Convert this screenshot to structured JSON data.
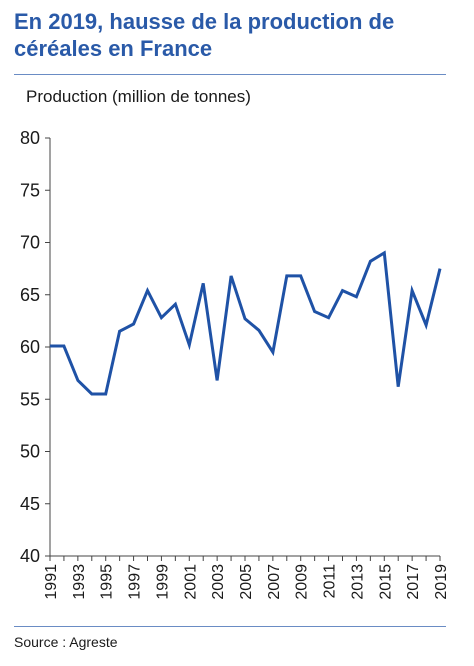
{
  "header": {
    "title_line1": "En 2019, hausse de la production de",
    "title_line2": "céréales en France"
  },
  "footer": {
    "source": "Source : Agreste"
  },
  "colors": {
    "title": "#2a5aa8",
    "line": "#1f52a6",
    "rule": "#6a8cc4",
    "axis": "#444444"
  },
  "chart_data": {
    "type": "line",
    "title": "En 2019, hausse de la production de céréales en France",
    "ylabel": "Production (million de tonnes)",
    "xlabel": "",
    "ylim": [
      40,
      80
    ],
    "yticks": [
      40,
      45,
      50,
      55,
      60,
      65,
      70,
      75,
      80
    ],
    "xlim": [
      1991,
      2019
    ],
    "xtick_labels": [
      "1991",
      "1993",
      "1995",
      "1997",
      "1999",
      "2001",
      "2003",
      "2005",
      "2007",
      "2009",
      "2011",
      "2013",
      "2015",
      "2017",
      "2019"
    ],
    "grid": false,
    "series": [
      {
        "x": [
          1991,
          1992,
          1993,
          1994,
          1995,
          1996,
          1997,
          1998,
          1999,
          2000,
          2001,
          2002,
          2003,
          2004,
          2005,
          2006,
          2007,
          2008,
          2009,
          2010,
          2011,
          2012,
          2013,
          2014,
          2015,
          2016,
          2017,
          2018,
          2019
        ],
        "values": [
          60.1,
          60.1,
          56.8,
          55.5,
          55.5,
          61.5,
          62.2,
          65.4,
          62.8,
          64.1,
          60.2,
          66.1,
          56.8,
          66.8,
          62.7,
          61.6,
          59.5,
          66.8,
          66.8,
          63.4,
          62.8,
          65.4,
          64.8,
          68.2,
          69.0,
          56.2,
          65.4,
          62.1,
          67.5
        ]
      }
    ],
    "source": "Source : Agreste"
  }
}
